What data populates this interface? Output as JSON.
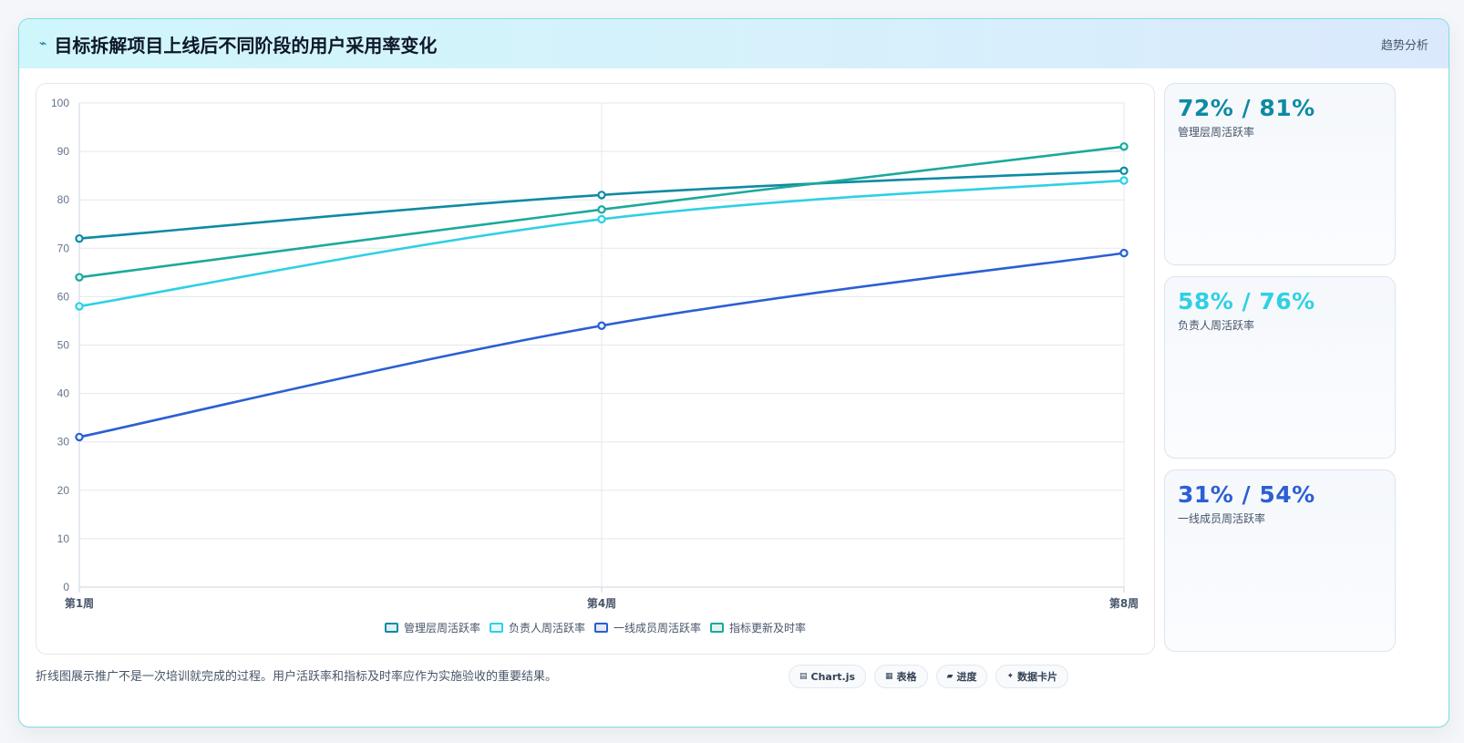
{
  "header": {
    "icon": "lightning-icon",
    "title": "目标拆解项目上线后不同阶段的用户采用率变化",
    "tag": "趋势分析"
  },
  "chart_data": {
    "type": "line",
    "categories": [
      "第1周",
      "第4周",
      "第8周"
    ],
    "ylim": [
      0,
      100
    ],
    "yticks": [
      0,
      10,
      20,
      30,
      40,
      50,
      60,
      70,
      80,
      90,
      100
    ],
    "grid": true,
    "legend_position": "bottom",
    "series": [
      {
        "name": "管理层周活跃率",
        "values": [
          72,
          81,
          86
        ],
        "color": "#0e8aa3"
      },
      {
        "name": "负责人周活跃率",
        "values": [
          58,
          76,
          84
        ],
        "color": "#2fd0e4"
      },
      {
        "name": "一线成员周活跃率",
        "values": [
          31,
          54,
          69
        ],
        "color": "#2b5fd3"
      },
      {
        "name": "指标更新及时率",
        "values": [
          64,
          78,
          91
        ],
        "color": "#1ba99b"
      }
    ]
  },
  "stats": [
    {
      "value": "72% / 81%",
      "label": "管理层周活跃率",
      "color": "#0e8aa3"
    },
    {
      "value": "58% / 76%",
      "label": "负责人周活跃率",
      "color": "#2fd0e4"
    },
    {
      "value": "31% / 54%",
      "label": "一线成员周活跃率",
      "color": "#2b5fd3"
    }
  ],
  "footer": {
    "note": "折线图展示推广不是一次培训就完成的过程。用户活跃率和指标及时率应作为实施验收的重要结果。",
    "buttons": [
      {
        "label": "Chart.js",
        "icon": "chart-icon",
        "glyph": "▤"
      },
      {
        "label": "表格",
        "icon": "table-icon",
        "glyph": "▦"
      },
      {
        "label": "进度",
        "icon": "progress-icon",
        "glyph": "▰"
      },
      {
        "label": "数据卡片",
        "icon": "card-icon",
        "glyph": "✦"
      }
    ]
  }
}
